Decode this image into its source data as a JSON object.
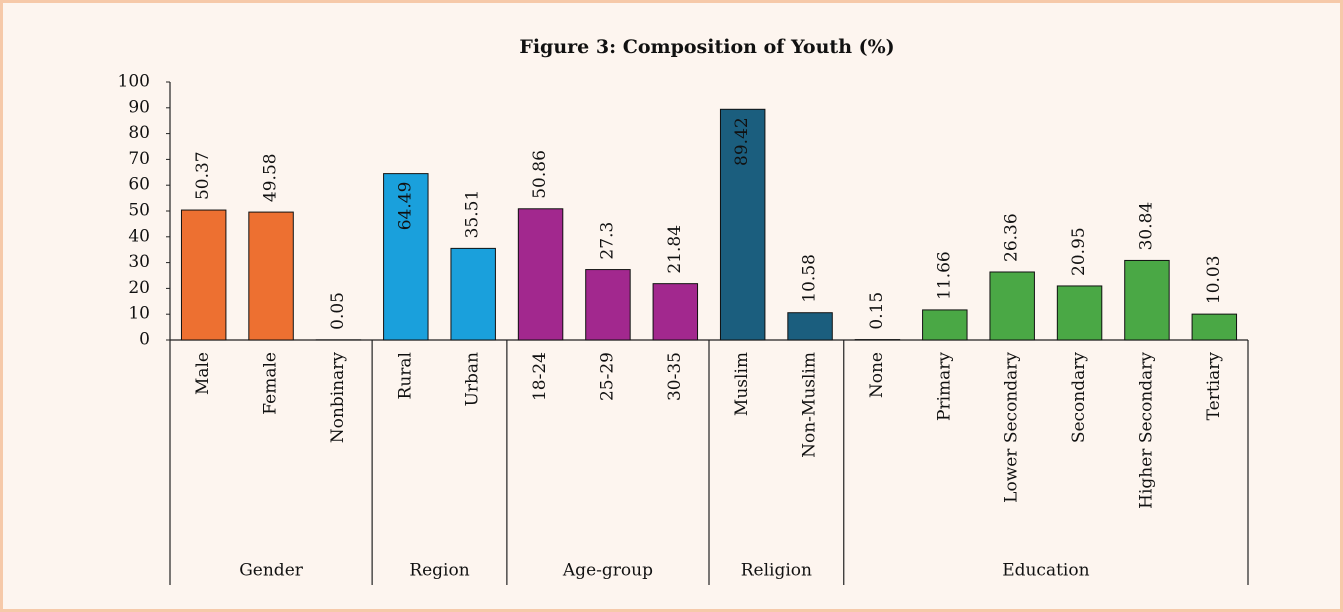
{
  "chart_data": {
    "type": "bar",
    "title": "Figure 3: Composition of Youth (%)",
    "ylim": [
      0,
      100
    ],
    "yticks": [
      0,
      10,
      20,
      30,
      40,
      50,
      60,
      70,
      80,
      90,
      100
    ],
    "groups": [
      {
        "name": "Gender",
        "color": "#ed7031",
        "categories": [
          "Male",
          "Female",
          "Nonbinary"
        ],
        "values": [
          50.37,
          49.58,
          0.05
        ]
      },
      {
        "name": "Region",
        "color": "#1aa0dc",
        "categories": [
          "Rural",
          "Urban"
        ],
        "values": [
          64.49,
          35.51
        ]
      },
      {
        "name": "Age-group",
        "color": "#a2288e",
        "categories": [
          "18-24",
          "25-29",
          "30-35"
        ],
        "values": [
          50.86,
          27.3,
          21.84
        ]
      },
      {
        "name": "Religion",
        "color": "#1b5e7e",
        "categories": [
          "Muslim",
          "Non-Muslim"
        ],
        "values": [
          89.42,
          10.58
        ]
      },
      {
        "name": "Education",
        "color": "#4aa845",
        "categories": [
          "None",
          "Primary",
          "Lower Secondary",
          "Secondary",
          "Higher Secondary",
          "Tertiary"
        ],
        "values": [
          0.15,
          11.66,
          26.36,
          20.95,
          30.84,
          10.03
        ]
      }
    ]
  }
}
